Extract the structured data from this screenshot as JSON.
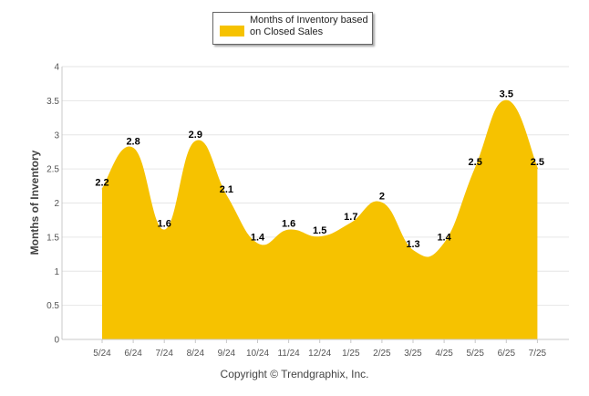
{
  "chart_data": {
    "type": "area",
    "categories": [
      "5/24",
      "6/24",
      "7/24",
      "8/24",
      "9/24",
      "10/24",
      "11/24",
      "12/24",
      "1/25",
      "2/25",
      "3/25",
      "4/25",
      "5/25",
      "6/25",
      "7/25"
    ],
    "series": [
      {
        "name": "Months of Inventory based on Closed Sales",
        "values": [
          2.2,
          2.8,
          1.6,
          2.9,
          2.1,
          1.4,
          1.6,
          1.5,
          1.7,
          2,
          1.3,
          1.4,
          2.5,
          3.5,
          2.5
        ],
        "color": "#f6c200"
      }
    ],
    "data_labels": [
      "2.2",
      "2.8",
      "1.6",
      "2.9",
      "2.1",
      "1.4",
      "1.6",
      "1.5",
      "1.7",
      "2",
      "1.3",
      "1.4",
      "2.5",
      "3.5",
      "2.5"
    ],
    "y_ticks": [
      0,
      0.5,
      1,
      1.5,
      2,
      2.5,
      3,
      3.5,
      4
    ],
    "y_tick_labels": [
      "0",
      "0.5",
      "1",
      "1.5",
      "2",
      "2.5",
      "3",
      "3.5",
      "4"
    ],
    "ylim": [
      0,
      4
    ],
    "ylabel": "Months of Inventory",
    "xlabel": "",
    "title": "",
    "legend_position": "top-center",
    "grid": true
  },
  "legend": {
    "label": "Months of Inventory based on Closed Sales",
    "color": "#f6c200"
  },
  "footer": {
    "copyright": "Copyright © Trendgraphix, Inc."
  }
}
